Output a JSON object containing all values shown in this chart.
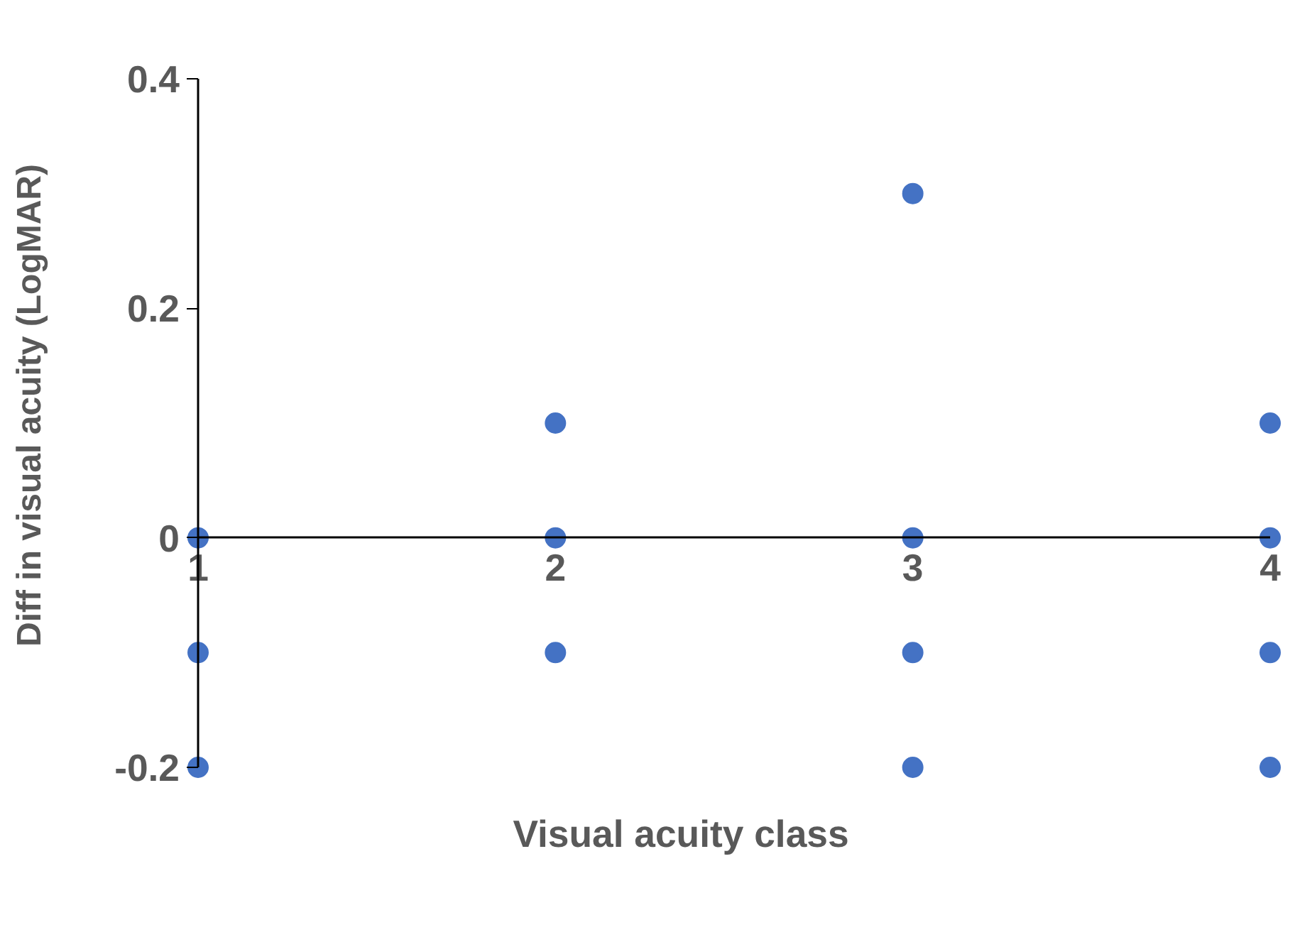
{
  "chart_data": {
    "type": "scatter",
    "xlabel": "Visual acuity class",
    "ylabel": "Diff in visual acuity (LogMAR)",
    "x": [
      1,
      1,
      1,
      2,
      2,
      2,
      3,
      3,
      3,
      3,
      4,
      4,
      4,
      4
    ],
    "series": [
      {
        "color": "#4472c4",
        "values": [
          0,
          -0.1,
          -0.2,
          0.1,
          0,
          -0.1,
          0.3,
          0,
          -0.1,
          -0.2,
          0.1,
          0,
          -0.1,
          -0.2
        ]
      }
    ],
    "xlim": [
      1,
      4
    ],
    "ylim": [
      -0.2,
      0.4
    ],
    "xticks": [
      1,
      2,
      3,
      4
    ],
    "yticks": [
      -0.2,
      0,
      0.2,
      0.4
    ],
    "grid": false,
    "marker": "circle"
  }
}
